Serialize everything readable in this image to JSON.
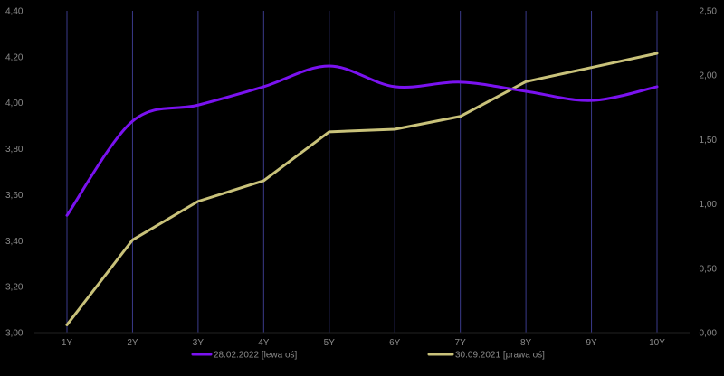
{
  "chart_data": {
    "type": "line",
    "categories": [
      "1Y",
      "2Y",
      "3Y",
      "4Y",
      "5Y",
      "6Y",
      "7Y",
      "8Y",
      "9Y",
      "10Y"
    ],
    "y_left": {
      "ticks": [
        "3,00",
        "3,20",
        "3,40",
        "3,60",
        "3,80",
        "4,00",
        "4,20",
        "4,40"
      ],
      "ylim": [
        3.0,
        4.4
      ]
    },
    "y_right": {
      "ticks": [
        "0,00",
        "0,50",
        "1,00",
        "1,50",
        "2,00",
        "2,50"
      ],
      "ylim": [
        0.0,
        2.5
      ]
    },
    "grid": "vertical lines at categories",
    "legend_position": "bottom",
    "series": [
      {
        "name": "28.02.2022 [lewa oś]",
        "axis": "left",
        "color": "#7a12f0",
        "smooth": true,
        "values": [
          3.51,
          3.92,
          3.99,
          4.07,
          4.16,
          4.07,
          4.09,
          4.05,
          4.01,
          4.07
        ]
      },
      {
        "name": "30.09.2021 [prawa oś]",
        "axis": "right",
        "color": "#c9c27a",
        "smooth": false,
        "values": [
          0.06,
          0.72,
          1.02,
          1.18,
          1.56,
          1.58,
          1.68,
          1.95,
          2.06,
          2.17
        ]
      }
    ]
  },
  "colors": {
    "background": "#000000",
    "gridline": "#3a3a8a",
    "axis_text": "#8a8a8a"
  }
}
